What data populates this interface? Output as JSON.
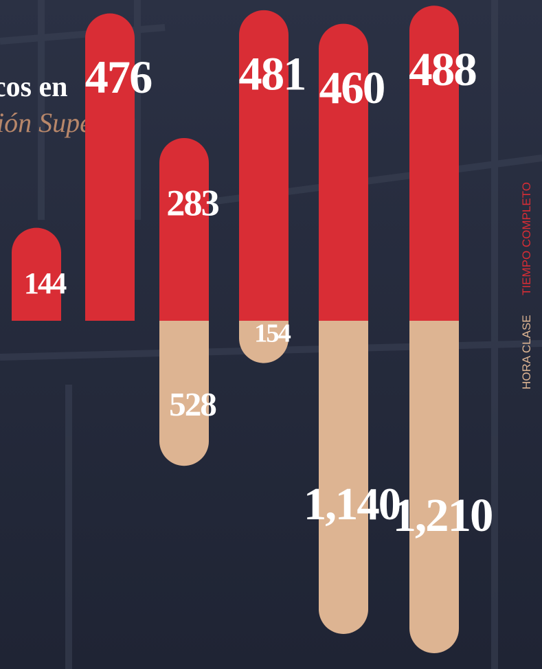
{
  "chart_data": {
    "type": "bar",
    "title": "cos en",
    "subtitle": "ión Superior",
    "categories": [
      null,
      null,
      null,
      null,
      null,
      null
    ],
    "series": [
      {
        "name": "TIEMPO COMPLETO",
        "color": "#d92d35",
        "values": [
          144,
          476,
          283,
          481,
          460,
          488
        ]
      },
      {
        "name": "HORA CLASE",
        "color": "#ddb492",
        "axis": "y2",
        "values": [
          null,
          null,
          528,
          154,
          1140,
          1210
        ],
        "value_labels": [
          null,
          null,
          "528",
          "154",
          "1,140",
          "1,210"
        ]
      }
    ],
    "ylim": [
      0,
      500
    ],
    "y2lim": [
      0,
      1250
    ]
  }
}
